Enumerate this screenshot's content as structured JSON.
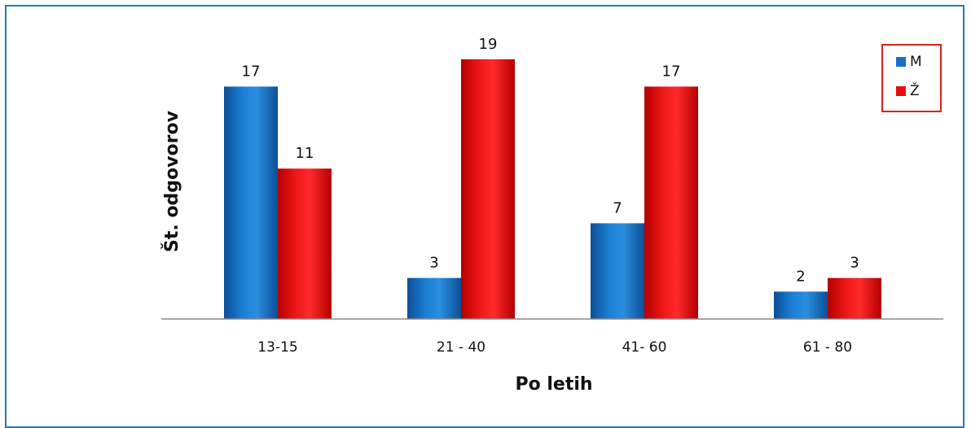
{
  "chart_data": {
    "type": "bar",
    "categories": [
      "13-15",
      "21 - 40",
      "41- 60",
      "61 - 80"
    ],
    "series": [
      {
        "name": "M",
        "values": [
          17,
          3,
          7,
          2
        ],
        "color": "#1670c8"
      },
      {
        "name": "Ž",
        "values": [
          11,
          19,
          17,
          3
        ],
        "color": "#e60e0e"
      }
    ],
    "title": "",
    "xlabel": "Po letih",
    "ylabel": "Št. odgovorov",
    "ylim": [
      0,
      20
    ],
    "grid": false,
    "legend": "top-right"
  }
}
